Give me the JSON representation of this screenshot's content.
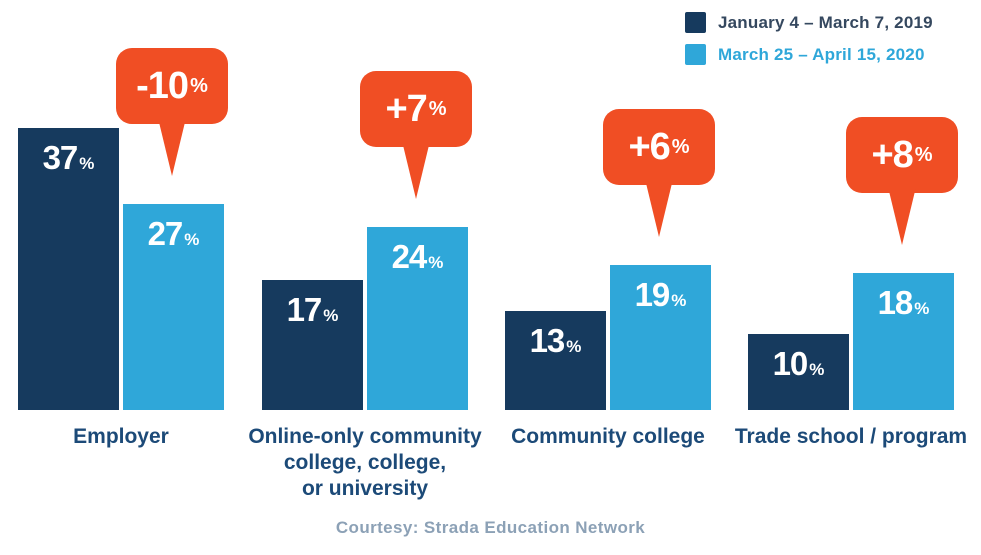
{
  "caption": "Courtesy: Strada Education Network",
  "chart_data": {
    "type": "bar",
    "unit": "%",
    "title": "",
    "xlabel": "",
    "ylabel": "",
    "ylim": [
      0,
      40
    ],
    "grid": false,
    "legend_position": "top-right",
    "categories": [
      "Employer",
      "Online-only community\ncollege, college,\nor university",
      "Community college",
      "Trade school / program"
    ],
    "series": [
      {
        "name": "January 4 – March 7, 2019",
        "color": "#163a5e",
        "values": [
          37,
          17,
          13,
          10
        ]
      },
      {
        "name": "March 25 – April 15, 2020",
        "color": "#2fa7d9",
        "values": [
          27,
          24,
          19,
          18
        ]
      }
    ],
    "deltas": [
      {
        "label": "-10",
        "unit": "%"
      },
      {
        "label": "+7",
        "unit": "%"
      },
      {
        "label": "+6",
        "unit": "%"
      },
      {
        "label": "+8",
        "unit": "%"
      }
    ],
    "delta_color": "#f04e24"
  }
}
